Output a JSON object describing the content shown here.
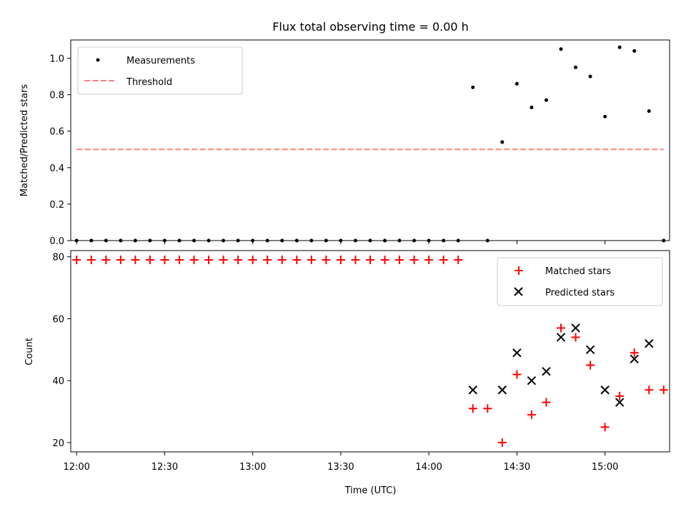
{
  "chart_data": [
    {
      "type": "scatter",
      "title": "Flux total observing time = 0.00 h",
      "xlabel": "",
      "ylabel": "Matched/Predicted stars",
      "xlim": [
        "11:58",
        "15:22"
      ],
      "ylim": [
        0,
        1.1
      ],
      "yticks": [
        "0.0",
        "0.2",
        "0.4",
        "0.6",
        "0.8",
        "1.0"
      ],
      "legend": {
        "position": "top-left",
        "entries": [
          "Measurements",
          "Threshold"
        ]
      },
      "threshold": {
        "value": 0.5,
        "x_start": "12:00",
        "x_end": "15:20",
        "color": "#ff8080"
      },
      "series": [
        {
          "name": "Measurements",
          "marker": "dot",
          "color": "#000000",
          "points": [
            [
              "12:00",
              0
            ],
            [
              "12:05",
              0
            ],
            [
              "12:10",
              0
            ],
            [
              "12:15",
              0
            ],
            [
              "12:20",
              0
            ],
            [
              "12:25",
              0
            ],
            [
              "12:30",
              0
            ],
            [
              "12:35",
              0
            ],
            [
              "12:40",
              0
            ],
            [
              "12:45",
              0
            ],
            [
              "12:50",
              0
            ],
            [
              "12:55",
              0
            ],
            [
              "13:00",
              0
            ],
            [
              "13:05",
              0
            ],
            [
              "13:10",
              0
            ],
            [
              "13:15",
              0
            ],
            [
              "13:20",
              0
            ],
            [
              "13:25",
              0
            ],
            [
              "13:30",
              0
            ],
            [
              "13:35",
              0
            ],
            [
              "13:40",
              0
            ],
            [
              "13:45",
              0
            ],
            [
              "13:50",
              0
            ],
            [
              "13:55",
              0
            ],
            [
              "14:00",
              0
            ],
            [
              "14:05",
              0
            ],
            [
              "14:10",
              0
            ],
            [
              "14:15",
              0.84
            ],
            [
              "14:20",
              0
            ],
            [
              "14:25",
              0.54
            ],
            [
              "14:30",
              0.86
            ],
            [
              "14:35",
              0.73
            ],
            [
              "14:40",
              0.77
            ],
            [
              "14:45",
              1.05
            ],
            [
              "14:50",
              0.95
            ],
            [
              "14:55",
              0.9
            ],
            [
              "15:00",
              0.68
            ],
            [
              "15:05",
              1.06
            ],
            [
              "15:10",
              1.04
            ],
            [
              "15:15",
              0.71
            ],
            [
              "15:20",
              0
            ]
          ]
        }
      ]
    },
    {
      "type": "scatter",
      "title": "",
      "xlabel": "Time (UTC)",
      "ylabel": "Count",
      "xlim": [
        "11:58",
        "15:22"
      ],
      "ylim": [
        17,
        82
      ],
      "xticks": [
        "12:00",
        "12:30",
        "13:00",
        "13:30",
        "14:00",
        "14:30",
        "15:00"
      ],
      "yticks": [
        "20",
        "40",
        "60",
        "80"
      ],
      "legend": {
        "position": "top-right",
        "entries": [
          "Matched stars",
          "Predicted stars"
        ]
      },
      "series": [
        {
          "name": "Matched stars",
          "marker": "plus",
          "color": "#ff0000",
          "points": [
            [
              "12:00",
              79
            ],
            [
              "12:05",
              79
            ],
            [
              "12:10",
              79
            ],
            [
              "12:15",
              79
            ],
            [
              "12:20",
              79
            ],
            [
              "12:25",
              79
            ],
            [
              "12:30",
              79
            ],
            [
              "12:35",
              79
            ],
            [
              "12:40",
              79
            ],
            [
              "12:45",
              79
            ],
            [
              "12:50",
              79
            ],
            [
              "12:55",
              79
            ],
            [
              "13:00",
              79
            ],
            [
              "13:05",
              79
            ],
            [
              "13:10",
              79
            ],
            [
              "13:15",
              79
            ],
            [
              "13:20",
              79
            ],
            [
              "13:25",
              79
            ],
            [
              "13:30",
              79
            ],
            [
              "13:35",
              79
            ],
            [
              "13:40",
              79
            ],
            [
              "13:45",
              79
            ],
            [
              "13:50",
              79
            ],
            [
              "13:55",
              79
            ],
            [
              "14:00",
              79
            ],
            [
              "14:05",
              79
            ],
            [
              "14:10",
              79
            ],
            [
              "14:15",
              31
            ],
            [
              "14:20",
              31
            ],
            [
              "14:25",
              20
            ],
            [
              "14:30",
              42
            ],
            [
              "14:35",
              29
            ],
            [
              "14:40",
              33
            ],
            [
              "14:45",
              57
            ],
            [
              "14:50",
              54
            ],
            [
              "14:55",
              45
            ],
            [
              "15:00",
              25
            ],
            [
              "15:05",
              35
            ],
            [
              "15:10",
              49
            ],
            [
              "15:15",
              37
            ],
            [
              "15:20",
              37
            ]
          ]
        },
        {
          "name": "Predicted stars",
          "marker": "x",
          "color": "#000000",
          "points": [
            [
              "14:15",
              37
            ],
            [
              "14:25",
              37
            ],
            [
              "14:30",
              49
            ],
            [
              "14:35",
              40
            ],
            [
              "14:40",
              43
            ],
            [
              "14:45",
              54
            ],
            [
              "14:50",
              57
            ],
            [
              "14:55",
              50
            ],
            [
              "15:00",
              37
            ],
            [
              "15:05",
              33
            ],
            [
              "15:10",
              47
            ],
            [
              "15:15",
              52
            ]
          ]
        }
      ]
    }
  ]
}
